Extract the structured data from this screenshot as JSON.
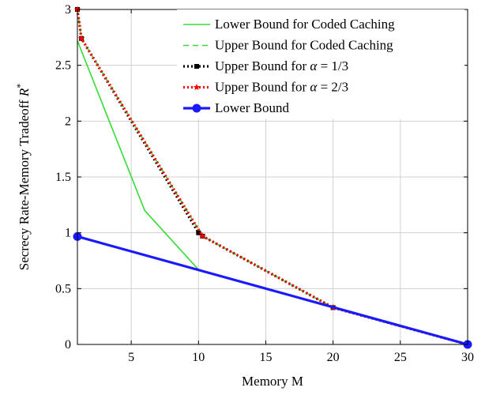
{
  "chart_data": {
    "type": "line",
    "xlabel": "Memory M",
    "ylabel": "Secrecy Rate-Memory Tradeoff R*",
    "xlim": [
      1,
      30
    ],
    "ylim": [
      0,
      3
    ],
    "x_ticks": [
      5,
      10,
      15,
      20,
      25,
      30
    ],
    "y_ticks": [
      0,
      0.5,
      1,
      1.5,
      2,
      2.5,
      3
    ],
    "x_tick_labels": [
      "5",
      "10",
      "15",
      "20",
      "25",
      "30"
    ],
    "y_tick_labels": [
      "0",
      "0.5",
      "1",
      "1.5",
      "2",
      "2.5",
      "3"
    ],
    "grid": true,
    "legend_position": "top-right",
    "series": [
      {
        "name": "Lower Bound for Coded Caching",
        "color": "#33dd33",
        "style": "solid",
        "marker": "none",
        "x": [
          1,
          6,
          10
        ],
        "y": [
          2.72,
          1.2,
          0.67
        ]
      },
      {
        "name": "Upper Bound for Coded Caching",
        "color": "#33dd33",
        "style": "dashed",
        "marker": "none",
        "x": [
          1,
          1.3,
          10.3,
          20,
          30
        ],
        "y": [
          3.0,
          2.74,
          0.97,
          0.33,
          0
        ]
      },
      {
        "name": "Upper Bound for α = 1/3",
        "color": "#000000",
        "style": "dotted",
        "marker": "square",
        "x": [
          1,
          1.3,
          10,
          10.3,
          20,
          30
        ],
        "y": [
          3.0,
          2.74,
          1.0,
          0.97,
          0.33,
          0
        ]
      },
      {
        "name": "Upper Bound for α = 2/3",
        "color": "#ff0000",
        "style": "dotted",
        "marker": "star",
        "x": [
          1,
          1.3,
          10.3,
          20,
          30
        ],
        "y": [
          3.0,
          2.74,
          0.97,
          0.33,
          0
        ]
      },
      {
        "name": "Lower Bound",
        "color": "#1a1aff",
        "style": "solid",
        "marker": "circle",
        "x": [
          1,
          30
        ],
        "y": [
          0.967,
          0
        ]
      }
    ]
  }
}
